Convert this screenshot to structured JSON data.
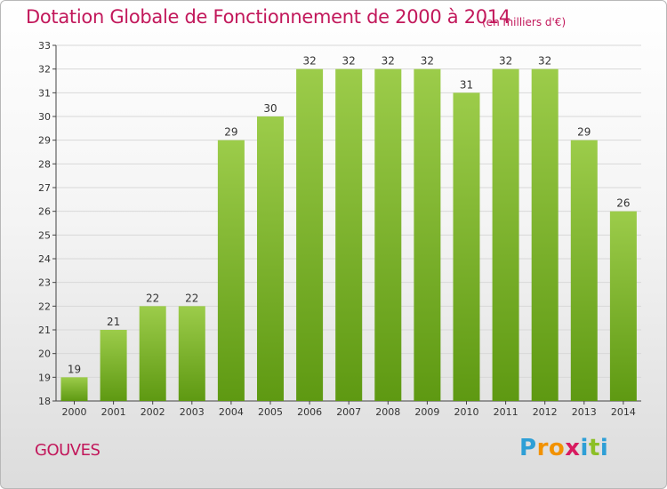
{
  "header": {
    "title": "Dotation Globale de Fonctionnement de 2000 à 2014",
    "unit": "(en milliers d'€)"
  },
  "footer": {
    "commune": "GOUVES",
    "logo_letters": [
      "P",
      "r",
      "o",
      "x",
      "i",
      "t",
      "i"
    ],
    "logo_colors": [
      "#2e9fd6",
      "#f29200",
      "#f29200",
      "#d81b60",
      "#2e9fd6",
      "#8cbf26",
      "#2e9fd6"
    ]
  },
  "colors": {
    "bar_light": "#9ccc4a",
    "bar_dark": "#5e9912",
    "title": "#c2185b",
    "grid": "#d8d8d8"
  },
  "chart_data": {
    "type": "bar",
    "categories": [
      "2000",
      "2001",
      "2002",
      "2003",
      "2004",
      "2005",
      "2006",
      "2007",
      "2008",
      "2009",
      "2010",
      "2011",
      "2012",
      "2013",
      "2014"
    ],
    "values": [
      19,
      21,
      22,
      22,
      29,
      30,
      32,
      32,
      32,
      32,
      31,
      32,
      32,
      29,
      26
    ],
    "title": "Dotation Globale de Fonctionnement de 2000 à 2014",
    "ylim": [
      18,
      33
    ],
    "yticks": [
      18,
      19,
      20,
      21,
      22,
      23,
      24,
      25,
      26,
      27,
      28,
      29,
      30,
      31,
      32,
      33
    ],
    "grid": true,
    "data_labels": true
  }
}
